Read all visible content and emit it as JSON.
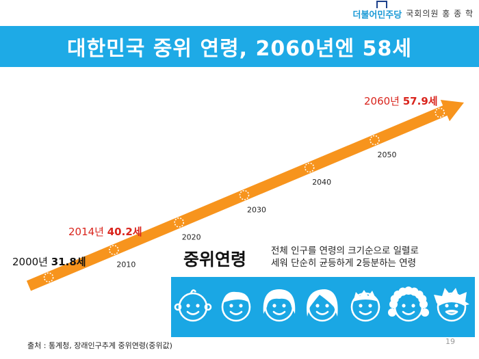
{
  "header": {
    "party_logo": "더불어민주당",
    "lawmaker": "국회의원 홍 종 학",
    "title": "대한민국 중위 연령, 2060년엔 58세"
  },
  "chart_data": {
    "type": "line",
    "x": [
      2000,
      2010,
      2014,
      2020,
      2030,
      2040,
      2050,
      2060
    ],
    "tick_labels": [
      "2010",
      "2020",
      "2030",
      "2040",
      "2050"
    ],
    "callouts": [
      {
        "year": 2000,
        "label": "2000년",
        "value": 31.8,
        "value_text": "31.8세"
      },
      {
        "year": 2014,
        "label": "2014년",
        "value": 40.2,
        "value_text": "40.2세"
      },
      {
        "year": 2060,
        "label": "2060년",
        "value": 57.9,
        "value_text": "57.9세"
      }
    ],
    "colors": {
      "arrow": "#f7941d",
      "highlight": "#d9241c"
    }
  },
  "definition": {
    "term": "중위연령",
    "text": "전체 인구를 연령의 크기순으로 일렬로\n세워 단순히 균등하게 2등분하는 연령"
  },
  "people_icons": [
    "baby-face-icon",
    "boy-face-icon",
    "girl-face-icon",
    "woman-face-icon",
    "man-face-icon",
    "curly-woman-face-icon",
    "old-man-face-icon"
  ],
  "footer": {
    "source": "출처 : 통계청, 장래인구추계 중위연령(중위값)",
    "page": "19"
  }
}
